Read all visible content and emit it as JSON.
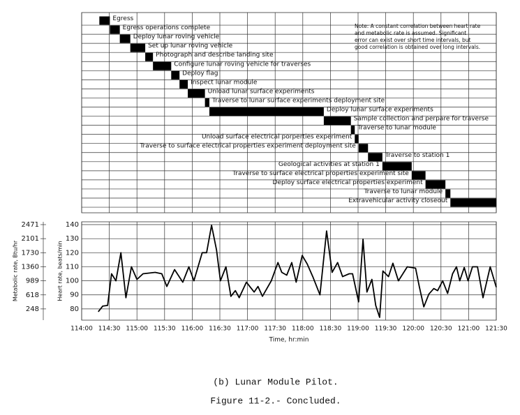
{
  "chart_data": [
    {
      "type": "gantt",
      "tasks": [
        "Egress",
        "Egress operations complete",
        "Deploy lunar roving vehicle",
        "Set up lunar roving vehicle",
        "Photograph and describe landing site",
        "Configure lunar roving vehicle for traverses",
        "Deploy flag",
        "Inspect lunar module",
        "Unload lunar surface experiments",
        "Traverse to lunar surface experiments deployment site",
        "Deploy lunar surface experiments",
        "Sample collection and perpare for traverse",
        "Traverse to lunar module",
        "Unload surface electrical porperties experiment",
        "Traverse to surface electrical properties experiment deployment site",
        "Traverse to station 1",
        "Geological activities at station 1",
        "Traverse to surface electrical properties experiment site",
        "Deploy surface electrical properties experiment",
        "Traverse to lunar module",
        "Extravehicular activity closeout"
      ],
      "starts": [
        114.32,
        114.51,
        114.69,
        114.88,
        115.15,
        115.29,
        115.62,
        115.77,
        115.92,
        116.23,
        116.31,
        118.38,
        118.87,
        118.94,
        119.01,
        119.18,
        119.44,
        119.97,
        120.22,
        120.58,
        120.67
      ],
      "ends": [
        114.51,
        114.69,
        114.88,
        115.15,
        115.29,
        115.62,
        115.77,
        115.92,
        116.23,
        116.31,
        118.38,
        118.87,
        118.94,
        119.01,
        119.18,
        119.44,
        119.97,
        120.22,
        120.58,
        120.67,
        121.5
      ],
      "color": "#000000",
      "note": [
        "Note: A constant correlation between heart rate",
        "and metabolic rate is assumed.  Significant",
        "error can exist over short time intervals, but",
        "good correlation is obtained over long intervals."
      ]
    },
    {
      "type": "line",
      "x": [
        114.3,
        114.38,
        114.47,
        114.54,
        114.62,
        114.71,
        114.8,
        114.9,
        115.0,
        115.11,
        115.33,
        115.45,
        115.54,
        115.68,
        115.83,
        115.94,
        116.03,
        116.18,
        116.26,
        116.35,
        116.44,
        116.51,
        116.61,
        116.7,
        116.78,
        116.85,
        116.98,
        117.12,
        117.19,
        117.27,
        117.43,
        117.55,
        117.62,
        117.71,
        117.8,
        117.88,
        117.99,
        118.08,
        118.18,
        118.31,
        118.43,
        118.53,
        118.63,
        118.72,
        118.84,
        118.9,
        119.01,
        119.09,
        119.16,
        119.25,
        119.32,
        119.39,
        119.45,
        119.55,
        119.63,
        119.73,
        119.89,
        120.04,
        120.11,
        120.19,
        120.28,
        120.37,
        120.44,
        120.53,
        120.62,
        120.71,
        120.78,
        120.84,
        120.92,
        120.99,
        121.07,
        121.16,
        121.26,
        121.39,
        121.5
      ],
      "values": [
        78,
        82,
        82.5,
        105,
        100,
        120,
        88,
        110,
        101,
        105,
        106,
        105,
        96,
        108,
        99,
        110,
        100,
        120,
        120,
        139.5,
        122,
        100,
        110,
        89,
        93,
        88,
        99,
        92,
        96,
        89,
        100,
        113,
        106,
        104,
        113,
        99,
        118,
        112,
        103,
        90,
        135.5,
        106,
        113,
        103,
        105,
        105,
        85,
        129.5,
        92,
        101,
        82.5,
        74,
        107,
        103,
        112.5,
        100,
        110,
        109,
        95.5,
        81.5,
        90.5,
        94.5,
        93,
        100,
        91,
        105,
        110,
        100,
        109.5,
        100,
        110,
        110,
        88,
        110,
        95.5
      ],
      "color": "#000000",
      "xlim": [
        114,
        121.5
      ],
      "xticks": [
        {
          "value": 114,
          "label": "114:00"
        },
        {
          "value": 114.5,
          "label": "114:30"
        },
        {
          "value": 115,
          "label": "115:00"
        },
        {
          "value": 115.5,
          "label": "115:30"
        },
        {
          "value": 116,
          "label": "116:00"
        },
        {
          "value": 116.5,
          "label": "116:30"
        },
        {
          "value": 117,
          "label": "117:00"
        },
        {
          "value": 117.5,
          "label": "117:30"
        },
        {
          "value": 118,
          "label": "118:00"
        },
        {
          "value": 118.5,
          "label": "118:30"
        },
        {
          "value": 119,
          "label": "119:00"
        },
        {
          "value": 119.5,
          "label": "119:30"
        },
        {
          "value": 120,
          "label": "120:00"
        },
        {
          "value": 120.5,
          "label": "120:30"
        },
        {
          "value": 121,
          "label": "121:00"
        },
        {
          "value": 121.5,
          "label": "121:30"
        }
      ],
      "xlabel": "Time, hr:min",
      "ylabel": "Heart rate, beats/min",
      "ylim": [
        72,
        142
      ],
      "yticks": [
        80,
        90,
        100,
        110,
        120,
        130,
        140
      ],
      "y2label": "Metabolic rate, Btu/hr",
      "y2lim": [
        -48.4,
        2545.1
      ],
      "y2ticks": [
        248,
        618,
        989,
        1360,
        1730,
        2101,
        2471
      ],
      "grid": true
    }
  ],
  "captions": [
    "(b) Lunar Module Pilot.",
    "Figure 11-2.- Concluded."
  ]
}
